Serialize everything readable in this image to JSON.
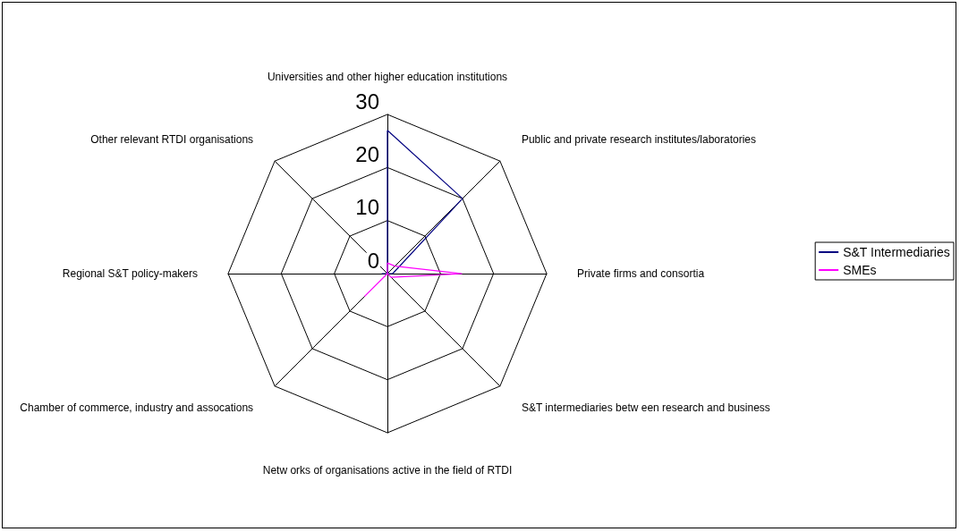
{
  "chart_data": {
    "type": "radar",
    "categories": [
      "Universities and other higher education institutions",
      "Public and private research institutes/laboratories",
      "Private firms and consortia",
      "S&T intermediaries betw een research and business",
      "Netw orks of organisations active in the field of RTDI",
      "Chamber of commerce, industry and assocations",
      "Regional S&T policy-makers",
      "Other relevant RTDI organisations"
    ],
    "series": [
      {
        "name": "S&T Intermediaries",
        "color": "#000080",
        "values": [
          27,
          20,
          1,
          0,
          0,
          0,
          1,
          0
        ]
      },
      {
        "name": "SMEs",
        "color": "#ff00ff",
        "values": [
          2,
          2,
          14,
          1,
          0,
          6,
          0,
          0
        ]
      }
    ],
    "ylim": [
      0,
      30
    ],
    "yticks": [
      0,
      10,
      20,
      30
    ],
    "legend": "right",
    "marker": "none"
  }
}
